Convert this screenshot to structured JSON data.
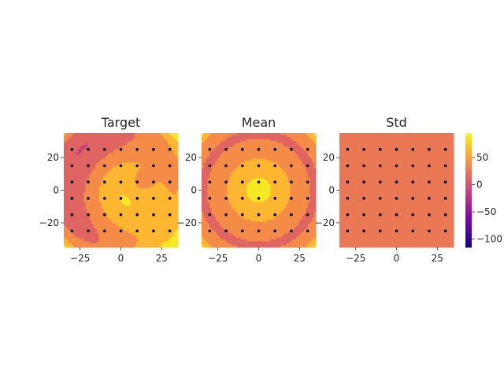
{
  "chart_data": [
    {
      "type": "contour",
      "title": "Target",
      "xlim": [
        -35,
        35
      ],
      "ylim": [
        -35,
        35
      ],
      "xticks": [
        -25,
        0,
        25
      ],
      "yticks": [
        -20,
        0,
        20
      ],
      "levels": [
        -100,
        -75,
        -50,
        -25,
        0,
        25,
        50,
        75
      ],
      "field": "target",
      "grid": false,
      "sample_points": {
        "x": [
          -30,
          -20,
          -10,
          0,
          10,
          20,
          30
        ],
        "y": [
          -25,
          -15,
          -5,
          5,
          15,
          25
        ]
      }
    },
    {
      "type": "contour",
      "title": "Mean",
      "xlim": [
        -35,
        35
      ],
      "ylim": [
        -35,
        35
      ],
      "xticks": [
        -25,
        0,
        25
      ],
      "yticks": [
        -20,
        0,
        20
      ],
      "levels": [
        -100,
        -75,
        -50,
        -25,
        0,
        25,
        50,
        75
      ],
      "field": "mean",
      "grid": false,
      "sample_points": {
        "x": [
          -30,
          -20,
          -10,
          0,
          10,
          20,
          30
        ],
        "y": [
          -25,
          -15,
          -5,
          5,
          15,
          25
        ]
      }
    },
    {
      "type": "contour",
      "title": "Std",
      "xlim": [
        -35,
        35
      ],
      "ylim": [
        -35,
        35
      ],
      "xticks": [
        -25,
        0,
        25
      ],
      "yticks": [
        -20,
        0,
        20
      ],
      "field": "std",
      "uniform_value": 25,
      "grid": false,
      "sample_points": {
        "x": [
          -30,
          -20,
          -10,
          0,
          10,
          20,
          30
        ],
        "y": [
          -25,
          -15,
          -5,
          5,
          15,
          25
        ]
      }
    }
  ],
  "colorbar": {
    "cmap": "plasma",
    "range": [
      -115,
      95
    ],
    "ticks": [
      50,
      0,
      -50,
      -100
    ]
  }
}
